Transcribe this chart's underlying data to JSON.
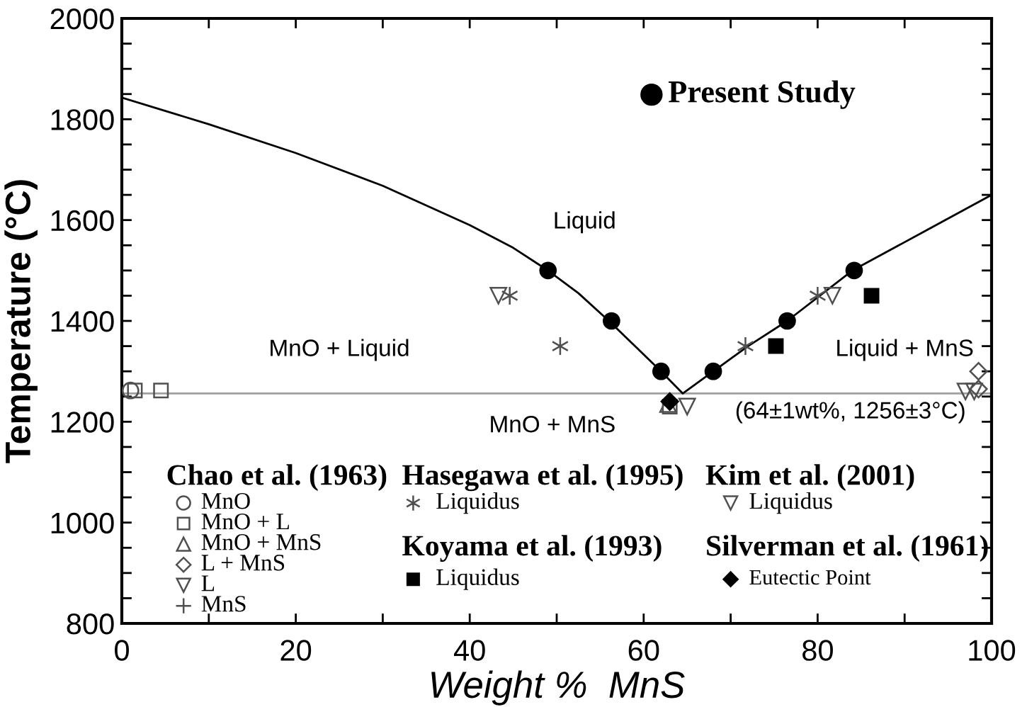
{
  "chart_data": {
    "type": "scatter",
    "xlabel": "Weight %  MnS",
    "ylabel": "Temperature (°C)",
    "xlim": [
      0,
      100
    ],
    "ylim": [
      800,
      2000
    ],
    "xticks": [
      0,
      {
        "value": 10,
        "label": null
      },
      20,
      {
        "value": 30,
        "label": null
      },
      40,
      {
        "value": 50,
        "label": null
      },
      60,
      {
        "value": 70,
        "label": null
      },
      80,
      {
        "value": 90,
        "label": null
      },
      100
    ],
    "yticks": [
      800,
      {
        "value": 850,
        "label": null
      },
      {
        "value": 900,
        "label": null
      },
      {
        "value": 950,
        "label": null
      },
      1000,
      {
        "value": 1050,
        "label": null
      },
      {
        "value": 1100,
        "label": null
      },
      {
        "value": 1150,
        "label": null
      },
      1200,
      {
        "value": 1250,
        "label": null
      },
      {
        "value": 1300,
        "label": null
      },
      {
        "value": 1350,
        "label": null
      },
      1400,
      {
        "value": 1450,
        "label": null
      },
      {
        "value": 1500,
        "label": null
      },
      {
        "value": 1550,
        "label": null
      },
      1600,
      {
        "value": 1650,
        "label": null
      },
      {
        "value": 1700,
        "label": null
      },
      {
        "value": 1750,
        "label": null
      },
      1800,
      {
        "value": 1850,
        "label": null
      },
      {
        "value": 1900,
        "label": null
      },
      {
        "value": 1950,
        "label": null
      },
      2000
    ],
    "grid": false,
    "legend": "bottom",
    "ref_lines": [
      {
        "axis": "y",
        "value": 1256,
        "color": "#a0a0a0",
        "line_style": "solid"
      }
    ],
    "annotations": [
      "Liquid",
      "MnO + Liquid",
      "Liquid + MnS",
      "MnO + MnS",
      "(64±1wt%, 1256±3°C)",
      "Chao et al. (1963)",
      "Hasegawa et al. (1995)",
      "Koyama et al. (1993)",
      "Kim et al. (2001)",
      "Silverman et al. (1961)"
    ],
    "series": [
      {
        "type": "line",
        "color": "#000000",
        "line_style": "solid",
        "x": [
          0,
          10,
          20,
          30,
          40,
          45,
          49,
          52.5,
          56,
          59,
          62,
          64.5,
          68,
          72,
          76.5,
          84,
          92,
          100
        ],
        "values": [
          1843,
          1790,
          1733,
          1668,
          1590,
          1545,
          1500,
          1455,
          1400,
          1350,
          1300,
          1256,
          1300,
          1350,
          1400,
          1500,
          1575,
          1650
        ]
      },
      {
        "name": "Present Study",
        "color": "#000000",
        "marker": "circle-filled",
        "x": [
          49,
          56.3,
          62,
          68,
          76.5,
          84.2
        ],
        "values": [
          1500,
          1400,
          1300,
          1300,
          1400,
          1500
        ]
      },
      {
        "name": "MnO",
        "color": "#505050",
        "marker": "circle",
        "x": [
          1
        ],
        "values": [
          1262
        ]
      },
      {
        "name": "MnO + L",
        "color": "#505050",
        "marker": "square",
        "x": [
          1.5,
          4.5,
          63
        ],
        "values": [
          1262,
          1262,
          1230
        ]
      },
      {
        "name": "MnO + MnS",
        "color": "#505050",
        "marker": "triangle",
        "x": [
          62.8
        ],
        "values": [
          1235
        ]
      },
      {
        "name": "L + MnS",
        "color": "#505050",
        "marker": "diamond",
        "x": [
          98.5,
          98.5
        ],
        "values": [
          1300,
          1265
        ]
      },
      {
        "name": "L",
        "color": "#505050",
        "marker": "triangle-down",
        "x": [
          98
        ],
        "values": [
          1260
        ]
      },
      {
        "name": "MnS",
        "color": "#505050",
        "marker": "plus"
      },
      {
        "name": "Liquidus",
        "color": "#505050",
        "marker": "cross",
        "x": [
          44.6,
          50.4,
          71.7,
          80
        ],
        "values": [
          1450,
          1350,
          1350,
          1450
        ]
      },
      {
        "name": "Liquidus",
        "color": "#000000",
        "marker": "square-filled",
        "x": [
          75.2,
          86.2
        ],
        "values": [
          1350,
          1450
        ]
      },
      {
        "name": "Liquidus",
        "color": "#505050",
        "marker": "triangle-down",
        "x": [
          43.3,
          81.7,
          65,
          97
        ],
        "values": [
          1450,
          1450,
          1230,
          1260
        ]
      },
      {
        "name": "Eutectic Point",
        "color": "#000000",
        "marker": "diamond-filled",
        "x": [
          63
        ],
        "values": [
          1240
        ]
      }
    ]
  }
}
